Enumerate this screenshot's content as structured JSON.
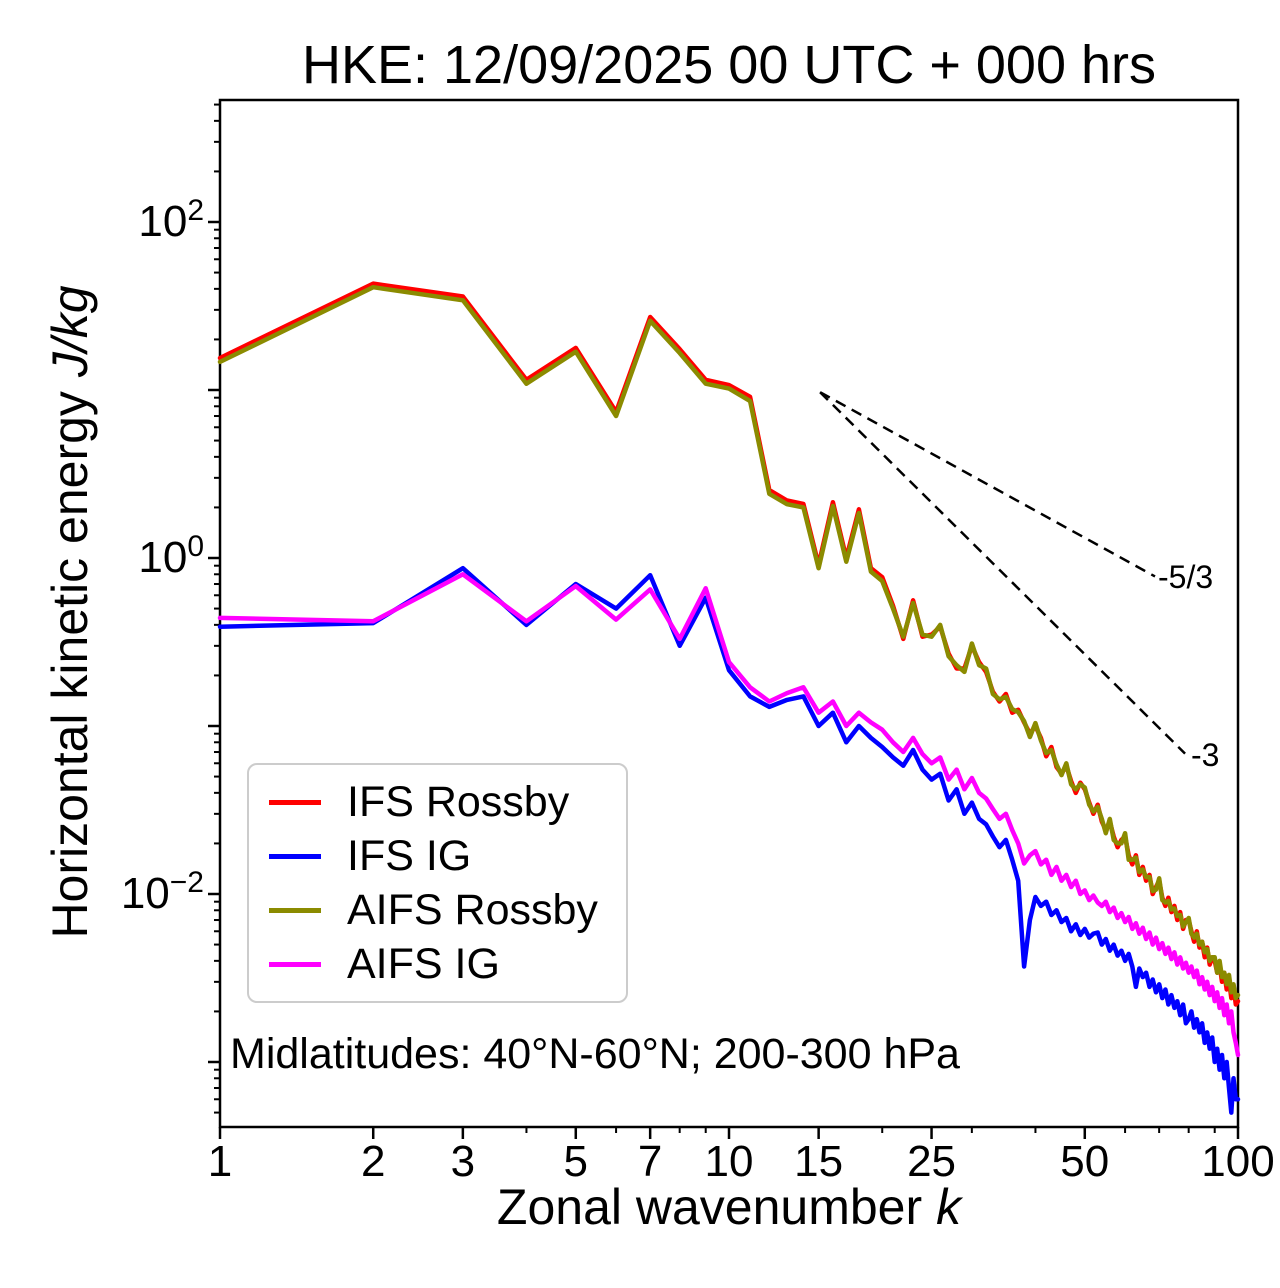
{
  "chart_data": {
    "type": "line",
    "title": "HKE: 12/09/2025 00 UTC + 000 hrs",
    "xlabel": "Zonal wavenumber k",
    "xlabel_text": "Zonal wavenumber",
    "xlabel_var": "k",
    "ylabel": "Horizontal kinetic energy J/kg",
    "ylabel_text": "Horizontal kinetic energy",
    "ylabel_units": "J/kg",
    "annotation": "Midlatitudes: 40°N-60°N; 200-300 hPa",
    "x_scale": "log",
    "y_scale": "log",
    "xlim": [
      1,
      100
    ],
    "ylim": [
      0.00041,
      530
    ],
    "grid": false,
    "legend_position": "lower-left",
    "x_major_ticks": [
      1,
      2,
      3,
      5,
      7,
      10,
      15,
      25,
      50,
      100
    ],
    "x_minor_ticks": [
      4,
      6,
      8,
      9,
      20,
      30,
      40,
      60,
      70,
      80,
      90
    ],
    "y_tick_base": "10",
    "y_labeled_ticks": [
      {
        "value": 100,
        "exp": "2"
      },
      {
        "value": 1,
        "exp": "0"
      },
      {
        "value": 0.01,
        "exp": "−2"
      }
    ],
    "x": [
      1,
      2,
      3,
      4,
      5,
      6,
      7,
      8,
      9,
      10,
      11,
      12,
      13,
      14,
      15,
      16,
      17,
      18,
      19,
      20,
      21,
      22,
      23,
      24,
      25,
      26,
      27,
      28,
      29,
      30,
      31,
      32,
      33,
      34,
      35,
      36,
      37,
      38,
      39,
      40,
      41,
      42,
      43,
      44,
      45,
      46,
      47,
      48,
      49,
      50,
      51,
      52,
      53,
      54,
      55,
      56,
      57,
      58,
      59,
      60,
      61,
      62,
      63,
      64,
      65,
      66,
      67,
      68,
      69,
      70,
      71,
      72,
      73,
      74,
      75,
      76,
      77,
      78,
      79,
      80,
      81,
      82,
      83,
      84,
      85,
      86,
      87,
      88,
      89,
      90,
      91,
      92,
      93,
      94,
      95,
      96,
      97,
      98,
      99,
      100
    ],
    "series": [
      {
        "name": "IFS Rossby",
        "color": "#ff0000",
        "values": [
          15.5,
          43,
          36,
          11.5,
          17.8,
          7.4,
          27.2,
          17.5,
          11.5,
          10.7,
          9.1,
          2.54,
          2.2,
          2.1,
          0.91,
          2.15,
          1.0,
          1.95,
          0.87,
          0.77,
          0.52,
          0.33,
          0.56,
          0.34,
          0.35,
          0.39,
          0.27,
          0.22,
          0.22,
          0.3,
          0.24,
          0.21,
          0.16,
          0.14,
          0.155,
          0.12,
          0.125,
          0.105,
          0.09,
          0.1,
          0.085,
          0.066,
          0.075,
          0.057,
          0.052,
          0.058,
          0.047,
          0.04,
          0.046,
          0.042,
          0.035,
          0.03,
          0.034,
          0.027,
          0.024,
          0.027,
          0.022,
          0.019,
          0.021,
          0.022,
          0.017,
          0.015,
          0.017,
          0.013,
          0.0145,
          0.012,
          0.013,
          0.01,
          0.011,
          0.012,
          0.0095,
          0.0085,
          0.0095,
          0.0078,
          0.0085,
          0.007,
          0.0078,
          0.0062,
          0.007,
          0.007,
          0.006,
          0.0052,
          0.006,
          0.0048,
          0.0052,
          0.0042,
          0.0048,
          0.0038,
          0.0042,
          0.004,
          0.0034,
          0.0038,
          0.003,
          0.0034,
          0.0027,
          0.0031,
          0.0024,
          0.0028,
          0.0022,
          0.0023
        ]
      },
      {
        "name": "IFS IG",
        "color": "#0000ff",
        "values": [
          0.39,
          0.41,
          0.87,
          0.4,
          0.7,
          0.5,
          0.79,
          0.3,
          0.58,
          0.215,
          0.15,
          0.13,
          0.143,
          0.15,
          0.1,
          0.12,
          0.08,
          0.1,
          0.085,
          0.075,
          0.065,
          0.058,
          0.072,
          0.055,
          0.048,
          0.052,
          0.036,
          0.042,
          0.03,
          0.035,
          0.028,
          0.026,
          0.022,
          0.019,
          0.021,
          0.016,
          0.012,
          0.0037,
          0.007,
          0.0096,
          0.0085,
          0.009,
          0.0075,
          0.008,
          0.0068,
          0.0072,
          0.006,
          0.0066,
          0.0057,
          0.0062,
          0.0055,
          0.0058,
          0.0059,
          0.005,
          0.0054,
          0.0046,
          0.005,
          0.0043,
          0.0046,
          0.004,
          0.0044,
          0.0037,
          0.0028,
          0.0036,
          0.0032,
          0.0034,
          0.0028,
          0.0031,
          0.0026,
          0.0029,
          0.0024,
          0.0027,
          0.0022,
          0.0025,
          0.0021,
          0.0023,
          0.0019,
          0.0022,
          0.0017,
          0.0018,
          0.002,
          0.0016,
          0.0018,
          0.0015,
          0.0017,
          0.0013,
          0.0015,
          0.0012,
          0.0014,
          0.001,
          0.0012,
          0.0009,
          0.0011,
          0.0008,
          0.001,
          0.0007,
          0.0005,
          0.0008,
          0.0006,
          0.0006
        ]
      },
      {
        "name": "AIFS Rossby",
        "color": "#8b8b00",
        "values": [
          14.7,
          40.9,
          34.2,
          10.9,
          16.9,
          7.0,
          25.8,
          16.6,
          10.9,
          10.2,
          8.6,
          2.41,
          2.09,
          2.0,
          0.87,
          2.04,
          0.95,
          1.85,
          0.83,
          0.73,
          0.5,
          0.34,
          0.54,
          0.35,
          0.34,
          0.4,
          0.26,
          0.23,
          0.21,
          0.31,
          0.23,
          0.22,
          0.155,
          0.144,
          0.149,
          0.126,
          0.121,
          0.107,
          0.086,
          0.104,
          0.082,
          0.069,
          0.072,
          0.059,
          0.051,
          0.06,
          0.045,
          0.042,
          0.045,
          0.043,
          0.034,
          0.031,
          0.033,
          0.028,
          0.023,
          0.028,
          0.021,
          0.02,
          0.02,
          0.023,
          0.016,
          0.016,
          0.0165,
          0.0135,
          0.014,
          0.0126,
          0.0126,
          0.0104,
          0.0106,
          0.0124,
          0.0092,
          0.0089,
          0.0091,
          0.0081,
          0.0082,
          0.0074,
          0.0075,
          0.0064,
          0.0068,
          0.0072,
          0.0058,
          0.0055,
          0.0058,
          0.005,
          0.0052,
          0.0045,
          0.0047,
          0.004,
          0.0042,
          0.0042,
          0.0034,
          0.004,
          0.0032,
          0.0034,
          0.0029,
          0.0033,
          0.0026,
          0.0029,
          0.0024,
          0.0025
        ]
      },
      {
        "name": "AIFS IG",
        "color": "#ff00ff",
        "values": [
          0.44,
          0.42,
          0.8,
          0.42,
          0.68,
          0.43,
          0.65,
          0.33,
          0.66,
          0.24,
          0.17,
          0.14,
          0.157,
          0.17,
          0.12,
          0.14,
          0.1,
          0.12,
          0.105,
          0.095,
          0.08,
          0.07,
          0.085,
          0.068,
          0.06,
          0.065,
          0.048,
          0.055,
          0.042,
          0.049,
          0.04,
          0.037,
          0.032,
          0.028,
          0.03,
          0.024,
          0.02,
          0.0152,
          0.017,
          0.018,
          0.015,
          0.016,
          0.013,
          0.0145,
          0.012,
          0.013,
          0.011,
          0.012,
          0.01,
          0.0105,
          0.0092,
          0.0098,
          0.0089,
          0.0085,
          0.009,
          0.0078,
          0.0083,
          0.0072,
          0.0077,
          0.0068,
          0.0073,
          0.0062,
          0.0067,
          0.0058,
          0.0063,
          0.0054,
          0.0059,
          0.005,
          0.0055,
          0.0047,
          0.0051,
          0.0044,
          0.0048,
          0.0041,
          0.0045,
          0.0038,
          0.0042,
          0.0036,
          0.0039,
          0.0034,
          0.0037,
          0.0032,
          0.0035,
          0.0029,
          0.0032,
          0.0027,
          0.003,
          0.0025,
          0.0028,
          0.0023,
          0.0026,
          0.0021,
          0.0024,
          0.0019,
          0.0022,
          0.0017,
          0.002,
          0.0015,
          0.0013,
          0.0011
        ]
      }
    ],
    "reference_lines": [
      {
        "label": "-5/3",
        "slope": -1.6667,
        "k_start": 15.1,
        "v_start": 9.7,
        "k_end": 68.7
      },
      {
        "label": "-3",
        "slope": -3,
        "k_start": 15.1,
        "v_start": 9.7,
        "k_end": 78.7
      }
    ]
  }
}
